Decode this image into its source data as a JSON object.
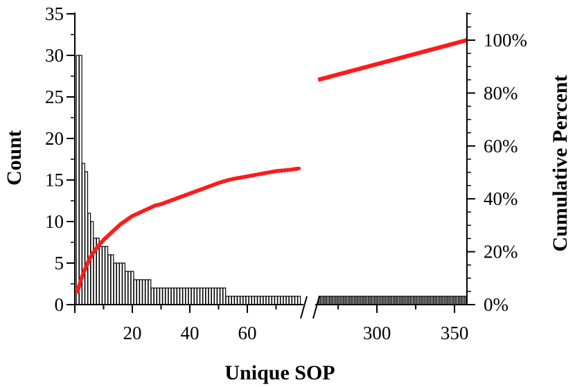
{
  "chart_data": {
    "type": "bar",
    "subtype": "pareto",
    "xlabel": "Unique SOP",
    "ylabel": "Count",
    "y2label": "Cumulative Percent",
    "ylim": [
      0,
      35
    ],
    "y2lim": [
      0,
      110
    ],
    "broken_x_axis": true,
    "x_segments": [
      {
        "xlim": [
          0,
          80
        ],
        "ticks": [
          20,
          40,
          60
        ],
        "tick_labels": [
          "20",
          "40",
          "60"
        ]
      },
      {
        "xlim": [
          258,
          358
        ],
        "ticks": [
          300,
          350
        ],
        "tick_labels": [
          "300",
          "350"
        ]
      }
    ],
    "y_ticks": [
      0,
      5,
      10,
      15,
      20,
      25,
      30,
      35
    ],
    "y_tick_labels": [
      "0",
      "5",
      "10",
      "15",
      "20",
      "25",
      "30",
      "35"
    ],
    "y2_ticks": [
      0,
      20,
      40,
      60,
      80,
      100
    ],
    "y2_tick_labels": [
      "0%",
      "20%",
      "40%",
      "60%",
      "80%",
      "100%"
    ],
    "bar_color": "#000000",
    "line_color": "#ff1a1a",
    "grid": false,
    "series": [
      {
        "kind": "bar",
        "axis": "left",
        "note": "Counts per unique SOP rank (rank 1 to 78 shown, then ranks 263 to 357 each with count 1)",
        "x": [
          1,
          2,
          3,
          4,
          5,
          6,
          7,
          8,
          9,
          10,
          11,
          12,
          13,
          14,
          15,
          16,
          17,
          18,
          19,
          20,
          21,
          22,
          23,
          24,
          25,
          26,
          27,
          28,
          29,
          30,
          31,
          32,
          33,
          34,
          35,
          36,
          37,
          38,
          39,
          40,
          41,
          42,
          43,
          44,
          45,
          46,
          47,
          48,
          49,
          50,
          51,
          52,
          53,
          54,
          55,
          56,
          57,
          58,
          59,
          60,
          61,
          62,
          63,
          64,
          65,
          66,
          67,
          68,
          69,
          70,
          71,
          72,
          73,
          74,
          75,
          76,
          77,
          78
        ],
        "values": [
          30,
          30,
          17,
          16,
          11,
          10,
          8,
          8,
          7,
          7,
          7,
          6,
          6,
          5,
          5,
          5,
          5,
          4,
          4,
          4,
          3,
          3,
          3,
          3,
          3,
          3,
          2,
          2,
          2,
          2,
          2,
          2,
          2,
          2,
          2,
          2,
          2,
          2,
          2,
          2,
          2,
          2,
          2,
          2,
          2,
          2,
          2,
          2,
          2,
          2,
          2,
          2,
          1,
          1,
          1,
          1,
          1,
          1,
          1,
          1,
          1,
          1,
          1,
          1,
          1,
          1,
          1,
          1,
          1,
          1,
          1,
          1,
          1,
          1,
          1,
          1,
          1,
          1
        ]
      },
      {
        "kind": "bar",
        "axis": "left",
        "x_range": [
          263,
          357
        ],
        "value": 1
      },
      {
        "kind": "line",
        "axis": "right",
        "x": [
          1,
          2,
          3,
          4,
          5,
          6,
          8,
          10,
          12,
          14,
          16,
          18,
          20,
          22,
          24,
          26,
          28,
          30,
          35,
          40,
          45,
          50,
          53,
          55,
          60,
          65,
          70,
          75,
          78
        ],
        "values": [
          5,
          9,
          12,
          14.5,
          17,
          19,
          22,
          24.5,
          26.5,
          28.5,
          30.5,
          32,
          33.5,
          34.5,
          35.5,
          36.5,
          37.5,
          38,
          40,
          42,
          44,
          46,
          47,
          47.5,
          48.5,
          49.5,
          50.5,
          51,
          51.5
        ]
      },
      {
        "kind": "line",
        "axis": "right",
        "x": [
          263,
          357
        ],
        "values": [
          85,
          100
        ]
      }
    ]
  }
}
